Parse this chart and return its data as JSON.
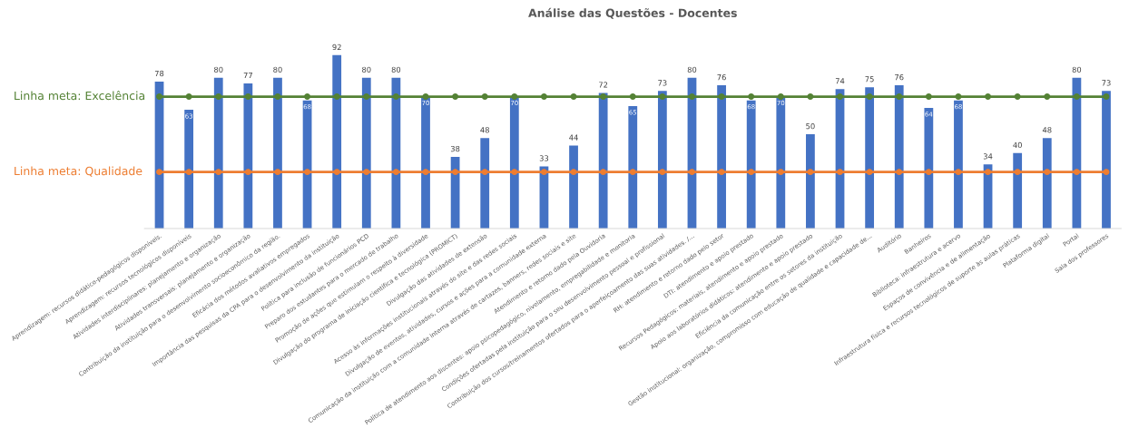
{
  "chart_data": {
    "type": "bar",
    "title": "Análise das Questões - Docentes",
    "categories": [
      "Aprendizagem: recursos didático-pedagógicos disponíveis.",
      "Aprendizagem: recursos tecnológicos disponíveis",
      "Atividades interdisciplinares: planejamento e organização",
      "Atividades transversais: planejamento e organização",
      "Contribuição da instituição para o desenvolvimento socioeconômico da região.",
      "Eficácia dos métodos avaliativos empregados",
      "Importância das pesquisas da CPA para o desenvolvimento da instituição",
      "Política para inclusão de funcionários PCD",
      "Preparo dos estudantes para o mercado de trabalho",
      "Promoção de ações que estimulam o respeito à diversidade",
      "Divulgação do programa de iniciação científica e tecnológica (PROMICT)",
      "Divulgação das atividades de extensão",
      "Acesso às informações institucionais através do site e das redes sociais",
      "Divulgação de eventos, atividades, cursos e ações para a comunidade externa",
      "Comunicação da instituição com a comunidade interna através de cartazes, banners, redes sociais e site",
      "Atendimento e retorno dado pela Ouvidoria",
      "Política de atendimento aos discentes: apoio psicopedagógico, nivelamento, empregabilidade e monitoria",
      "Condições ofertadas pela instituição para o seu desenvolvimento pessoal e profissional",
      "Contribuição dos cursos/treinamentos ofertados para o aperfeiçoamento das suas atividades. /...",
      "RH: atendimento e retorno dado pelo setor",
      "DTI: atendimento e apoio prestado",
      "Recursos Pedagógicos: materiais, atendimento e apoio prestado",
      "Apoio aos laboratórios didáticos: atendimento e apoio prestado",
      "Eficiência da comunicação entre os setores da instituição",
      "Gestão institucional: organização, compromisso com educação de qualidade e capacidade de...",
      "Auditório",
      "Banheiros",
      "Biblioteca: infraestrutura e acervo",
      "Espaços de convivência e de alimentação",
      "Infraestrutura física e recursos tecnológicos de suporte às aulas práticas",
      "Plataforma digital",
      "Portal",
      "Sala dos professores"
    ],
    "series": [
      {
        "color": "#4472c4",
        "data_labels": true,
        "values": [
          78,
          63,
          80,
          77,
          80,
          68,
          92,
          80,
          80,
          70,
          38,
          48,
          70,
          33,
          44,
          72,
          65,
          73,
          80,
          76,
          68,
          70,
          50,
          74,
          75,
          76,
          64,
          68,
          34,
          40,
          48,
          80,
          73
        ]
      },
      {
        "type": "line",
        "name": "Linha meta: Excelência",
        "color": "#548235",
        "marker": "circle",
        "values": [
          70,
          70,
          70,
          70,
          70,
          70,
          70,
          70,
          70,
          70,
          70,
          70,
          70,
          70,
          70,
          70,
          70,
          70,
          70,
          70,
          70,
          70,
          70,
          70,
          70,
          70,
          70,
          70,
          70,
          70,
          70,
          70,
          70
        ]
      },
      {
        "type": "line",
        "name": "Linha meta: Qualidade",
        "color": "#ed7d31",
        "marker": "circle",
        "values": [
          30,
          30,
          30,
          30,
          30,
          30,
          30,
          30,
          30,
          30,
          30,
          30,
          30,
          30,
          30,
          30,
          30,
          30,
          30,
          30,
          30,
          30,
          30,
          30,
          30,
          30,
          30,
          30,
          30,
          30,
          30,
          30,
          30
        ]
      }
    ],
    "grid": false,
    "legend": false
  }
}
